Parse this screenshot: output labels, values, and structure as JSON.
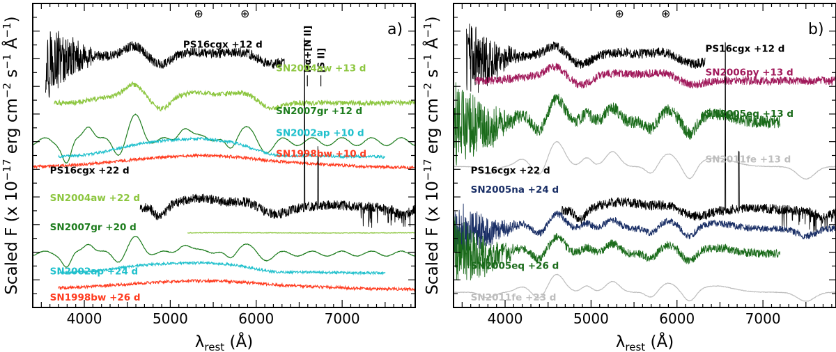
{
  "chart_data": [
    {
      "type": "line",
      "panel": "a)",
      "xlabel_main": "λ",
      "xlabel_sub": "rest",
      "xlabel_unit": "(Å)",
      "ylabel": "Scaled F  (x 10^-17 erg cm^-2 s^-1 Å^-1)",
      "ylabel_parts": {
        "pre": "Scaled F  (x 10",
        "exp1": "−17",
        "mid1": " erg cm",
        "exp2": "−2",
        "mid2": " s",
        "exp3": "−1",
        "mid3": " Å",
        "exp4": "−1",
        "post": ")"
      },
      "xlim": [
        3400,
        7850
      ],
      "ylim": [
        0,
        22
      ],
      "xticks": [
        4000,
        5000,
        6000,
        7000
      ],
      "xtick_labels": [
        "4000",
        "5000",
        "6000",
        "7000"
      ],
      "telluric_symbols": [
        {
          "x": 5330,
          "glyph": "⊕"
        },
        {
          "x": 5870,
          "glyph": "⊕"
        }
      ],
      "line_ids": [
        {
          "x": 6563,
          "label": "Hα+[N II]"
        },
        {
          "x": 6720,
          "label": "[S II]"
        }
      ],
      "series": [
        {
          "name": "PS16cgx +12 d",
          "color": "#000000",
          "x_range": [
            3550,
            6330
          ],
          "base": 17.9,
          "amp": 1.0,
          "noise": 0.35,
          "noise_blue": 3.2,
          "profile": "sn_ic",
          "label_x": 5150,
          "label_y": 18.8
        },
        {
          "name": "SN2004aw +13 d",
          "color": "#8cc63f",
          "x_range": [
            3650,
            7850
          ],
          "base": 14.8,
          "amp": 1.3,
          "noise": 0.18,
          "noise_blue": 0,
          "profile": "sn_ic",
          "label_x": 6230,
          "label_y": 17.1
        },
        {
          "name": "SN2007gr +12 d",
          "color": "#1e7d1e",
          "x_range": [
            3400,
            7850
          ],
          "base": 12.0,
          "amp": 1.9,
          "noise": 0.02,
          "noise_blue": 0,
          "profile": "sn_icpec",
          "label_x": 6230,
          "label_y": 14.0
        },
        {
          "name": "SN2002ap +10 d",
          "color": "#1fc0cc",
          "x_range": [
            3700,
            7500
          ],
          "base": 10.9,
          "amp": 1.6,
          "noise": 0.1,
          "noise_blue": 0,
          "profile": "broad",
          "label_x": 6230,
          "label_y": 12.4
        },
        {
          "name": "SN1998bw +10 d",
          "color": "#ff3b1f",
          "x_range": [
            3400,
            7850
          ],
          "base": 10.1,
          "amp": 1.0,
          "noise": 0.1,
          "noise_blue": 0,
          "profile": "verybroad",
          "label_x": 6230,
          "label_y": 10.9
        },
        {
          "name": "PS16cgx +22 d",
          "color": "#000000",
          "x_range": [
            4650,
            7850
          ],
          "base": 7.2,
          "amp": 1.0,
          "noise": 0.35,
          "noise_blue": 0,
          "profile": "sn_ic_late",
          "label_x": 3600,
          "label_y": 9.7
        },
        {
          "name": "SN2004aw +22 d",
          "color": "#8cc63f",
          "x_range": [
            5200,
            7850
          ],
          "base": 5.4,
          "amp": 0.2,
          "noise": 0.02,
          "noise_blue": 0,
          "profile": "flat",
          "label_x": 3600,
          "label_y": 7.7
        },
        {
          "name": "SN2007gr +20 d",
          "color": "#1e7d1e",
          "x_range": [
            3400,
            7850
          ],
          "base": 3.9,
          "amp": 1.2,
          "noise": 0.02,
          "noise_blue": 0,
          "profile": "sn_icpec",
          "label_x": 3600,
          "label_y": 5.6
        },
        {
          "name": "SN2002ap +24 d",
          "color": "#1fc0cc",
          "x_range": [
            3700,
            7500
          ],
          "base": 2.5,
          "amp": 0.9,
          "noise": 0.09,
          "noise_blue": 0,
          "profile": "broad",
          "label_x": 3600,
          "label_y": 2.4
        },
        {
          "name": "SN1998bw +26 d",
          "color": "#ff3b1f",
          "x_range": [
            3700,
            7850
          ],
          "base": 1.3,
          "amp": 0.7,
          "noise": 0.1,
          "noise_blue": 0,
          "profile": "verybroad",
          "label_x": 3600,
          "label_y": 0.5
        }
      ]
    },
    {
      "type": "line",
      "panel": "b)",
      "xlabel_main": "λ",
      "xlabel_sub": "rest",
      "xlabel_unit": "(Å)",
      "ylabel": "Scaled F  (x 10^-17 erg cm^-2 s^-1 Å^-1)",
      "ylabel_parts": {
        "pre": "Scaled F  (x 10",
        "exp1": "−17",
        "mid1": " erg cm",
        "exp2": "−2",
        "mid2": " s",
        "exp3": "−1",
        "mid3": " Å",
        "exp4": "−1",
        "post": ")"
      },
      "xlim": [
        3400,
        7850
      ],
      "ylim": [
        0,
        22
      ],
      "xticks": [
        4000,
        5000,
        6000,
        7000
      ],
      "xtick_labels": [
        "4000",
        "5000",
        "6000",
        "7000"
      ],
      "telluric_symbols": [
        {
          "x": 5330,
          "glyph": "⊕"
        },
        {
          "x": 5870,
          "glyph": "⊕"
        }
      ],
      "line_ids": [],
      "series": [
        {
          "name": "PS16cgx +12 d",
          "color": "#000000",
          "x_range": [
            3550,
            6330
          ],
          "base": 17.9,
          "amp": 1.0,
          "noise": 0.35,
          "noise_blue": 3.2,
          "profile": "sn_ic",
          "label_x": 6330,
          "label_y": 18.5
        },
        {
          "name": "SN2006py +13 d",
          "color": "#a0185a",
          "x_range": [
            3650,
            7850
          ],
          "base": 16.4,
          "amp": 1.0,
          "noise": 0.3,
          "noise_blue": 0,
          "profile": "sn_ic",
          "label_x": 6330,
          "label_y": 16.8
        },
        {
          "name": "SN2005eq +13 d",
          "color": "#1a6b1a",
          "x_range": [
            3400,
            7200
          ],
          "base": 13.4,
          "amp": 1.7,
          "noise": 0.45,
          "noise_blue": 3.0,
          "profile": "sn_ia",
          "label_x": 6330,
          "label_y": 13.8
        },
        {
          "name": "SN2011fe +13 d",
          "color": "#bdbdbd",
          "x_range": [
            3400,
            7850
          ],
          "base": 10.2,
          "amp": 1.8,
          "noise": 0.02,
          "noise_blue": 0,
          "profile": "sn_ia",
          "label_x": 6330,
          "label_y": 10.5
        },
        {
          "name": "PS16cgx +22 d",
          "color": "#000000",
          "x_range": [
            4650,
            7850
          ],
          "base": 7.0,
          "amp": 0.9,
          "noise": 0.35,
          "noise_blue": 0,
          "profile": "sn_ic_late",
          "label_x": 3600,
          "label_y": 9.7
        },
        {
          "name": "SN2005na +24 d",
          "color": "#1a2f66",
          "x_range": [
            3400,
            7850
          ],
          "base": 5.7,
          "amp": 1.1,
          "noise": 0.25,
          "noise_blue": 2.2,
          "profile": "sn_ia",
          "label_x": 3600,
          "label_y": 8.3
        },
        {
          "name": "SN2005eq +26 d",
          "color": "#1a6b1a",
          "x_range": [
            3400,
            7200
          ],
          "base": 3.9,
          "amp": 1.2,
          "noise": 0.3,
          "noise_blue": 2.5,
          "profile": "sn_ia",
          "label_x": 3600,
          "label_y": 2.8
        },
        {
          "name": "SN2011fe +23 d",
          "color": "#bdbdbd",
          "x_range": [
            3400,
            7850
          ],
          "base": 1.1,
          "amp": 1.3,
          "noise": 0.02,
          "noise_blue": 0,
          "profile": "sn_ia",
          "label_x": 3600,
          "label_y": 0.5
        }
      ]
    }
  ]
}
